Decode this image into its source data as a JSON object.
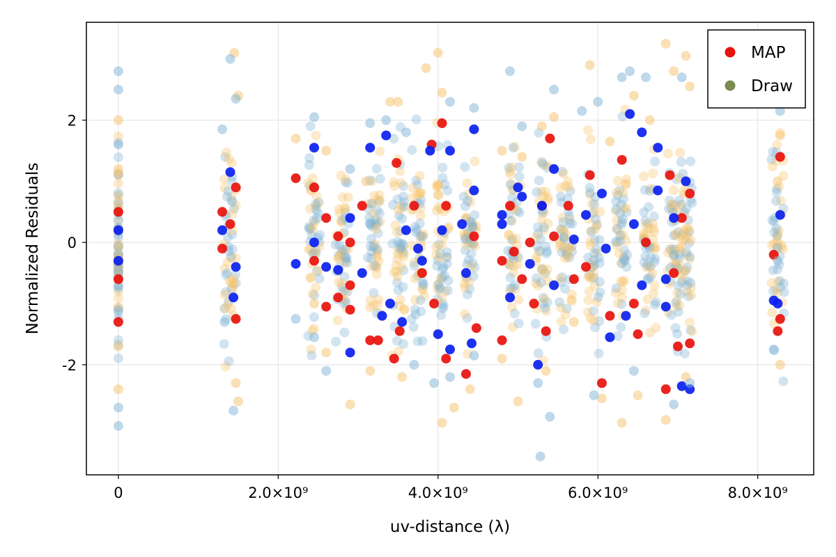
{
  "chart_data": {
    "type": "scatter",
    "xlabel": "uv-distance (λ)",
    "ylabel": "Normalized Residuals",
    "xlim": [
      -400000000,
      8700000000
    ],
    "ylim": [
      -3.8,
      3.6
    ],
    "x_ticks": [
      0,
      2000000000,
      4000000000,
      6000000000,
      8000000000
    ],
    "x_tick_labels": [
      "0",
      "2.0×10⁹",
      "4.0×10⁹",
      "6.0×10⁹",
      "8.0×10⁹"
    ],
    "y_ticks": [
      -2,
      0,
      2
    ],
    "y_tick_labels": [
      "-2",
      "0",
      "2"
    ],
    "grid": true,
    "legend_position": "top-right",
    "legend": [
      {
        "label": "MAP",
        "color": "#e8120c"
      },
      {
        "label": "Draw",
        "color": "#7a8a50"
      }
    ],
    "colors": {
      "map_real": "#e8120c",
      "map_imag": "#0a1ff0",
      "draw_real": "#f5c26b",
      "draw_imag": "#7fb3d5",
      "map_mixed": "#ea5a0c"
    },
    "baseline_groups_x": [
      0,
      1400000000,
      2450000000,
      2800000000,
      3200000000,
      3500000000,
      3750000000,
      4050000000,
      4400000000,
      4950000000,
      5300000000,
      5600000000,
      5950000000,
      6300000000,
      6650000000,
      6950000000,
      7100000000,
      8250000000
    ],
    "series": [
      {
        "name": "MAP",
        "color": "#e8120c",
        "points": [
          {
            "x": 0,
            "y": -1.3
          },
          {
            "x": 0,
            "y": 0.5
          },
          {
            "x": 0,
            "y": -0.6
          },
          {
            "x": 1300000000,
            "y": 0.5
          },
          {
            "x": 1300000000,
            "y": -0.1
          },
          {
            "x": 1470000000,
            "y": 0.9
          },
          {
            "x": 1470000000,
            "y": -1.25
          },
          {
            "x": 1400000000,
            "y": 0.3
          },
          {
            "x": 2220000000,
            "y": 1.05
          },
          {
            "x": 2450000000,
            "y": 0.9
          },
          {
            "x": 2450000000,
            "y": -0.3
          },
          {
            "x": 2600000000,
            "y": 0.4
          },
          {
            "x": 2600000000,
            "y": -1.05
          },
          {
            "x": 2750000000,
            "y": 0.1
          },
          {
            "x": 2750000000,
            "y": -0.9
          },
          {
            "x": 2900000000,
            "y": -0.7
          },
          {
            "x": 2900000000,
            "y": 0.0
          },
          {
            "x": 2900000000,
            "y": -1.1
          },
          {
            "x": 3050000000,
            "y": 0.6
          },
          {
            "x": 3150000000,
            "y": -1.6
          },
          {
            "x": 3250000000,
            "y": -1.6
          },
          {
            "x": 3450000000,
            "y": -1.9
          },
          {
            "x": 3480000000,
            "y": 1.3
          },
          {
            "x": 3520000000,
            "y": -1.45
          },
          {
            "x": 3700000000,
            "y": 0.6
          },
          {
            "x": 3800000000,
            "y": -0.5
          },
          {
            "x": 3920000000,
            "y": 1.6
          },
          {
            "x": 3950000000,
            "y": -1.0
          },
          {
            "x": 4050000000,
            "y": 1.95
          },
          {
            "x": 4100000000,
            "y": -1.9
          },
          {
            "x": 4100000000,
            "y": 0.6
          },
          {
            "x": 4350000000,
            "y": -2.15
          },
          {
            "x": 4450000000,
            "y": 0.1
          },
          {
            "x": 4480000000,
            "y": -1.4
          },
          {
            "x": 4800000000,
            "y": -1.6
          },
          {
            "x": 4800000000,
            "y": -0.3
          },
          {
            "x": 4900000000,
            "y": 0.6
          },
          {
            "x": 4950000000,
            "y": -0.15
          },
          {
            "x": 5050000000,
            "y": -0.6
          },
          {
            "x": 5150000000,
            "y": 0.0
          },
          {
            "x": 5200000000,
            "y": -1.0
          },
          {
            "x": 5300000000,
            "y": 0.6
          },
          {
            "x": 5350000000,
            "y": -1.45
          },
          {
            "x": 5400000000,
            "y": 1.7
          },
          {
            "x": 5450000000,
            "y": 0.1
          },
          {
            "x": 5630000000,
            "y": 0.6
          },
          {
            "x": 5700000000,
            "y": -0.6
          },
          {
            "x": 5850000000,
            "y": -0.4
          },
          {
            "x": 5900000000,
            "y": 1.1
          },
          {
            "x": 6050000000,
            "y": -2.3
          },
          {
            "x": 6150000000,
            "y": -1.2
          },
          {
            "x": 6300000000,
            "y": 1.35
          },
          {
            "x": 6450000000,
            "y": -1.0
          },
          {
            "x": 6500000000,
            "y": -1.5
          },
          {
            "x": 6600000000,
            "y": 0.0
          },
          {
            "x": 6850000000,
            "y": -2.4
          },
          {
            "x": 6900000000,
            "y": 1.1
          },
          {
            "x": 6950000000,
            "y": -0.5
          },
          {
            "x": 7000000000,
            "y": -1.7
          },
          {
            "x": 7050000000,
            "y": 0.4
          },
          {
            "x": 7150000000,
            "y": -1.65
          },
          {
            "x": 7150000000,
            "y": 0.8
          },
          {
            "x": 8200000000,
            "y": -0.2
          },
          {
            "x": 8280000000,
            "y": 1.4
          },
          {
            "x": 8280000000,
            "y": -1.25
          },
          {
            "x": 8250000000,
            "y": -1.45
          }
        ]
      },
      {
        "name": "",
        "color": "#0a1ff0",
        "points": [
          {
            "x": 0,
            "y": 0.2
          },
          {
            "x": 0,
            "y": -0.3
          },
          {
            "x": 1300000000,
            "y": 0.2
          },
          {
            "x": 1400000000,
            "y": 1.15
          },
          {
            "x": 1470000000,
            "y": -0.4
          },
          {
            "x": 1440000000,
            "y": -0.9
          },
          {
            "x": 2220000000,
            "y": -0.35
          },
          {
            "x": 2450000000,
            "y": 1.55
          },
          {
            "x": 2450000000,
            "y": 0.0
          },
          {
            "x": 2600000000,
            "y": -0.4
          },
          {
            "x": 2750000000,
            "y": -0.45
          },
          {
            "x": 2900000000,
            "y": -1.8
          },
          {
            "x": 2900000000,
            "y": 0.4
          },
          {
            "x": 3050000000,
            "y": -0.5
          },
          {
            "x": 3150000000,
            "y": 1.55
          },
          {
            "x": 3300000000,
            "y": -1.2
          },
          {
            "x": 3350000000,
            "y": 1.75
          },
          {
            "x": 3400000000,
            "y": -1.0
          },
          {
            "x": 3550000000,
            "y": -1.3
          },
          {
            "x": 3600000000,
            "y": 0.2
          },
          {
            "x": 3750000000,
            "y": -0.1
          },
          {
            "x": 3800000000,
            "y": -0.3
          },
          {
            "x": 3900000000,
            "y": 1.5
          },
          {
            "x": 4000000000,
            "y": -1.5
          },
          {
            "x": 4050000000,
            "y": 0.2
          },
          {
            "x": 4150000000,
            "y": -1.75
          },
          {
            "x": 4150000000,
            "y": 1.5
          },
          {
            "x": 4300000000,
            "y": 0.3
          },
          {
            "x": 4350000000,
            "y": -0.5
          },
          {
            "x": 4450000000,
            "y": 1.85
          },
          {
            "x": 4450000000,
            "y": 0.85
          },
          {
            "x": 4420000000,
            "y": -1.65
          },
          {
            "x": 4800000000,
            "y": 0.3
          },
          {
            "x": 4800000000,
            "y": 0.45
          },
          {
            "x": 4900000000,
            "y": -0.9
          },
          {
            "x": 5000000000,
            "y": 0.9
          },
          {
            "x": 5050000000,
            "y": 0.75
          },
          {
            "x": 5150000000,
            "y": -0.35
          },
          {
            "x": 5250000000,
            "y": -2.0
          },
          {
            "x": 5300000000,
            "y": 0.6
          },
          {
            "x": 5450000000,
            "y": 1.2
          },
          {
            "x": 5450000000,
            "y": -0.7
          },
          {
            "x": 5700000000,
            "y": 0.05
          },
          {
            "x": 5850000000,
            "y": 0.45
          },
          {
            "x": 6050000000,
            "y": 0.8
          },
          {
            "x": 6100000000,
            "y": -0.1
          },
          {
            "x": 6150000000,
            "y": -1.55
          },
          {
            "x": 6350000000,
            "y": -1.2
          },
          {
            "x": 6400000000,
            "y": 2.1
          },
          {
            "x": 6450000000,
            "y": 0.3
          },
          {
            "x": 6550000000,
            "y": 1.8
          },
          {
            "x": 6550000000,
            "y": -0.7
          },
          {
            "x": 6750000000,
            "y": 1.55
          },
          {
            "x": 6750000000,
            "y": 0.85
          },
          {
            "x": 6850000000,
            "y": -1.05
          },
          {
            "x": 6850000000,
            "y": -0.6
          },
          {
            "x": 6950000000,
            "y": 0.4
          },
          {
            "x": 7050000000,
            "y": -2.35
          },
          {
            "x": 7100000000,
            "y": 1.0
          },
          {
            "x": 7150000000,
            "y": -2.4
          },
          {
            "x": 8200000000,
            "y": -0.95
          },
          {
            "x": 8280000000,
            "y": 0.45
          },
          {
            "x": 8250000000,
            "y": -1.0
          }
        ]
      },
      {
        "name": "Draw",
        "color": "#f5c26b",
        "points": [
          {
            "x": 0,
            "y": 2.0
          },
          {
            "x": 0,
            "y": -2.4
          },
          {
            "x": 0,
            "y": 1.2
          },
          {
            "x": 0,
            "y": -1.7
          },
          {
            "x": 1500000000,
            "y": 2.4
          },
          {
            "x": 1450000000,
            "y": 3.1
          },
          {
            "x": 1470000000,
            "y": -2.3
          },
          {
            "x": 1500000000,
            "y": -2.6
          },
          {
            "x": 2220000000,
            "y": 1.7
          },
          {
            "x": 2450000000,
            "y": -1.0
          },
          {
            "x": 2600000000,
            "y": 1.5
          },
          {
            "x": 2600000000,
            "y": -1.8
          },
          {
            "x": 2900000000,
            "y": -2.65
          },
          {
            "x": 3100000000,
            "y": 1.0
          },
          {
            "x": 3150000000,
            "y": -2.1
          },
          {
            "x": 3400000000,
            "y": 2.3
          },
          {
            "x": 3500000000,
            "y": 2.3
          },
          {
            "x": 3550000000,
            "y": -2.2
          },
          {
            "x": 3850000000,
            "y": 2.85
          },
          {
            "x": 4000000000,
            "y": 3.1
          },
          {
            "x": 4050000000,
            "y": -2.95
          },
          {
            "x": 4050000000,
            "y": 2.45
          },
          {
            "x": 4200000000,
            "y": -2.7
          },
          {
            "x": 4400000000,
            "y": -2.4
          },
          {
            "x": 4800000000,
            "y": 1.5
          },
          {
            "x": 4800000000,
            "y": -1.9
          },
          {
            "x": 5000000000,
            "y": -2.6
          },
          {
            "x": 5050000000,
            "y": 1.4
          },
          {
            "x": 5300000000,
            "y": 1.9
          },
          {
            "x": 5350000000,
            "y": -2.1
          },
          {
            "x": 5450000000,
            "y": 2.05
          },
          {
            "x": 5700000000,
            "y": -1.3
          },
          {
            "x": 5900000000,
            "y": 2.9
          },
          {
            "x": 6050000000,
            "y": -2.55
          },
          {
            "x": 6150000000,
            "y": 1.65
          },
          {
            "x": 6300000000,
            "y": -2.95
          },
          {
            "x": 6450000000,
            "y": 2.4
          },
          {
            "x": 6500000000,
            "y": -2.5
          },
          {
            "x": 6650000000,
            "y": 2.0
          },
          {
            "x": 6850000000,
            "y": 3.25
          },
          {
            "x": 6850000000,
            "y": -2.9
          },
          {
            "x": 6950000000,
            "y": 2.8
          },
          {
            "x": 7100000000,
            "y": 3.05
          },
          {
            "x": 7100000000,
            "y": -2.2
          },
          {
            "x": 7150000000,
            "y": 2.55
          },
          {
            "x": 8280000000,
            "y": 1.75
          },
          {
            "x": 8280000000,
            "y": -2.0
          },
          {
            "x": 8250000000,
            "y": 1.0
          }
        ]
      },
      {
        "name": "",
        "color": "#7fb3d5",
        "points": [
          {
            "x": 0,
            "y": 2.8
          },
          {
            "x": 0,
            "y": -3.0
          },
          {
            "x": 0,
            "y": 2.5
          },
          {
            "x": 0,
            "y": -2.7
          },
          {
            "x": 0,
            "y": 1.6
          },
          {
            "x": 0,
            "y": -1.1
          },
          {
            "x": 1400000000,
            "y": 3.0
          },
          {
            "x": 1470000000,
            "y": 2.35
          },
          {
            "x": 1440000000,
            "y": -2.75
          },
          {
            "x": 1330000000,
            "y": -1.3
          },
          {
            "x": 1300000000,
            "y": 1.85
          },
          {
            "x": 2220000000,
            "y": -1.25
          },
          {
            "x": 2450000000,
            "y": 2.05
          },
          {
            "x": 2450000000,
            "y": -1.55
          },
          {
            "x": 2600000000,
            "y": -2.1
          },
          {
            "x": 2900000000,
            "y": 1.2
          },
          {
            "x": 3150000000,
            "y": 1.95
          },
          {
            "x": 3350000000,
            "y": 2.0
          },
          {
            "x": 3600000000,
            "y": 1.8
          },
          {
            "x": 3700000000,
            "y": -2.0
          },
          {
            "x": 3950000000,
            "y": -2.3
          },
          {
            "x": 4150000000,
            "y": 2.3
          },
          {
            "x": 4150000000,
            "y": -2.2
          },
          {
            "x": 4450000000,
            "y": 2.2
          },
          {
            "x": 4450000000,
            "y": -1.85
          },
          {
            "x": 4900000000,
            "y": 2.8
          },
          {
            "x": 5050000000,
            "y": 1.9
          },
          {
            "x": 5250000000,
            "y": -2.3
          },
          {
            "x": 5280000000,
            "y": -3.5
          },
          {
            "x": 5400000000,
            "y": -2.85
          },
          {
            "x": 5450000000,
            "y": 2.5
          },
          {
            "x": 5800000000,
            "y": 2.15
          },
          {
            "x": 6000000000,
            "y": 2.3
          },
          {
            "x": 5950000000,
            "y": -2.5
          },
          {
            "x": 6300000000,
            "y": 2.7
          },
          {
            "x": 6400000000,
            "y": 2.8
          },
          {
            "x": 6450000000,
            "y": -2.1
          },
          {
            "x": 6600000000,
            "y": 2.7
          },
          {
            "x": 6950000000,
            "y": -2.65
          },
          {
            "x": 7050000000,
            "y": 2.7
          },
          {
            "x": 7150000000,
            "y": -2.3
          },
          {
            "x": 8200000000,
            "y": -1.75
          },
          {
            "x": 8280000000,
            "y": 2.15
          },
          {
            "x": 8250000000,
            "y": -0.3
          }
        ]
      }
    ]
  }
}
